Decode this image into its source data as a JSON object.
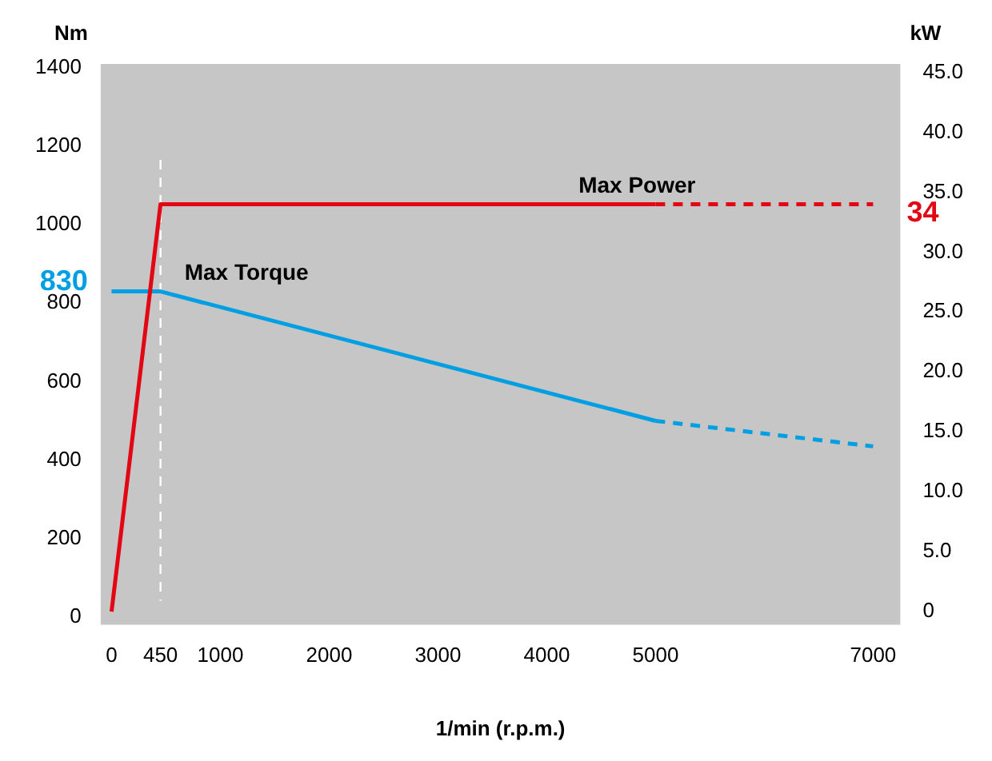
{
  "chart_data": {
    "type": "line",
    "xlabel": "1/min (r.p.m.)",
    "ylabel": "Nm",
    "y2label": "kW",
    "xlim": [
      -100,
      7250
    ],
    "xticks": [
      0,
      450,
      1000,
      2000,
      3000,
      4000,
      5000,
      7000
    ],
    "ylim": [
      -20,
      1410
    ],
    "yticks": [
      0,
      200,
      400,
      600,
      800,
      1000,
      1200,
      1400
    ],
    "y2lim": [
      -1.1,
      45.7
    ],
    "y2ticks": [
      0,
      {
        "value": 5,
        "label": "5.0"
      },
      {
        "value": 10,
        "label": "10.0"
      },
      {
        "value": 15,
        "label": "15.0"
      },
      {
        "value": 20,
        "label": "20.0"
      },
      {
        "value": 25,
        "label": "25.0"
      },
      {
        "value": 30,
        "label": "30.0"
      },
      {
        "value": 35,
        "label": "35.0"
      },
      {
        "value": 40,
        "label": "40.0"
      },
      {
        "value": 45,
        "label": "45.0"
      }
    ],
    "grid": false,
    "legend": false,
    "marker": "none",
    "ref_lines": [
      {
        "axis": "x",
        "value": 450,
        "label": null,
        "color": "#ffffff",
        "line_style": "dashed"
      }
    ],
    "series": [
      {
        "name": "Max Power",
        "color": "#e30613",
        "axis": "y2",
        "line_style": "solid",
        "x": [
          0,
          450,
          5000
        ],
        "values": [
          0,
          34,
          34
        ]
      },
      {
        "color": "#e30613",
        "axis": "y2",
        "line_style": "dashed",
        "x": [
          5000,
          7000
        ],
        "values": [
          34,
          34
        ],
        "value_labels": [
          null,
          "34"
        ]
      },
      {
        "name": "Max Torque",
        "color": "#009fe3",
        "line_style": "solid",
        "x": [
          0,
          450,
          5000
        ],
        "values": [
          830,
          830,
          500
        ],
        "value_labels": [
          "830",
          null,
          null
        ]
      },
      {
        "color": "#009fe3",
        "line_style": "dashed",
        "x": [
          5000,
          7000
        ],
        "values": [
          500,
          435
        ]
      }
    ]
  }
}
